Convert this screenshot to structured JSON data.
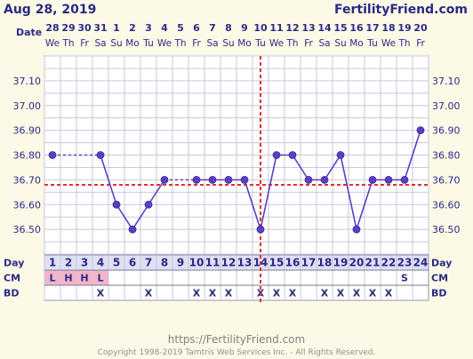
{
  "header": {
    "date_label": "Aug 28, 2019",
    "brand": "FertilityFriend.com",
    "date_row_label": "Date"
  },
  "calendar": {
    "dates": [
      "28",
      "29",
      "30",
      "31",
      "1",
      "2",
      "3",
      "4",
      "5",
      "6",
      "7",
      "8",
      "9",
      "10",
      "11",
      "12",
      "13",
      "14",
      "15",
      "16",
      "17",
      "18",
      "19",
      "20"
    ],
    "weekdays": [
      "We",
      "Th",
      "Fr",
      "Sa",
      "Su",
      "Mo",
      "Tu",
      "We",
      "Th",
      "Fr",
      "Sa",
      "Su",
      "Mo",
      "Tu",
      "We",
      "Th",
      "Fr",
      "Sa",
      "Su",
      "Mo",
      "Tu",
      "We",
      "Th",
      "Fr"
    ]
  },
  "chart_data": {
    "type": "line",
    "x": [
      1,
      2,
      3,
      4,
      5,
      6,
      7,
      8,
      9,
      10,
      11,
      12,
      13,
      14,
      15,
      16,
      17,
      18,
      19,
      20,
      21,
      22,
      23,
      24
    ],
    "y": [
      36.8,
      null,
      null,
      36.8,
      36.6,
      36.5,
      36.6,
      36.7,
      null,
      36.7,
      36.7,
      36.7,
      36.7,
      36.5,
      36.8,
      36.8,
      36.7,
      36.7,
      36.8,
      36.5,
      36.7,
      36.7,
      36.7,
      36.9
    ],
    "gap_lines": [
      [
        1,
        4
      ],
      [
        8,
        10
      ]
    ],
    "ylim": [
      36.4,
      37.2
    ],
    "yticks": [
      "37.10",
      "37.00",
      "36.90",
      "36.80",
      "36.70",
      "36.60",
      "36.50"
    ],
    "coverline": 36.68,
    "ovulation_day": 14,
    "grid": true,
    "series_color": "#5b3fc2",
    "coverline_color": "#e0302e"
  },
  "rows": {
    "day": {
      "label": "Day",
      "values": [
        "1",
        "2",
        "3",
        "4",
        "5",
        "6",
        "7",
        "8",
        "9",
        "10",
        "11",
        "12",
        "13",
        "14",
        "15",
        "16",
        "17",
        "18",
        "19",
        "20",
        "21",
        "22",
        "23",
        "24"
      ]
    },
    "cm": {
      "label": "CM",
      "values": [
        "L",
        "H",
        "H",
        "L",
        "",
        "",
        "",
        "",
        "",
        "",
        "",
        "",
        "",
        "",
        "",
        "",
        "",
        "",
        "",
        "",
        "",
        "",
        "S",
        ""
      ]
    },
    "bd": {
      "label": "BD",
      "values": [
        "",
        "",
        "",
        "X",
        "",
        "",
        "X",
        "",
        "",
        "X",
        "X",
        "X",
        "",
        "X",
        "X",
        "X",
        "",
        "X",
        "X",
        "X",
        "X",
        "X",
        "",
        ""
      ]
    }
  },
  "footer": {
    "url": "https://FertilityFriend.com",
    "copyright": "Copyright 1998-2019 Tamtris Web Services Inc. - All Rights Reserved."
  }
}
